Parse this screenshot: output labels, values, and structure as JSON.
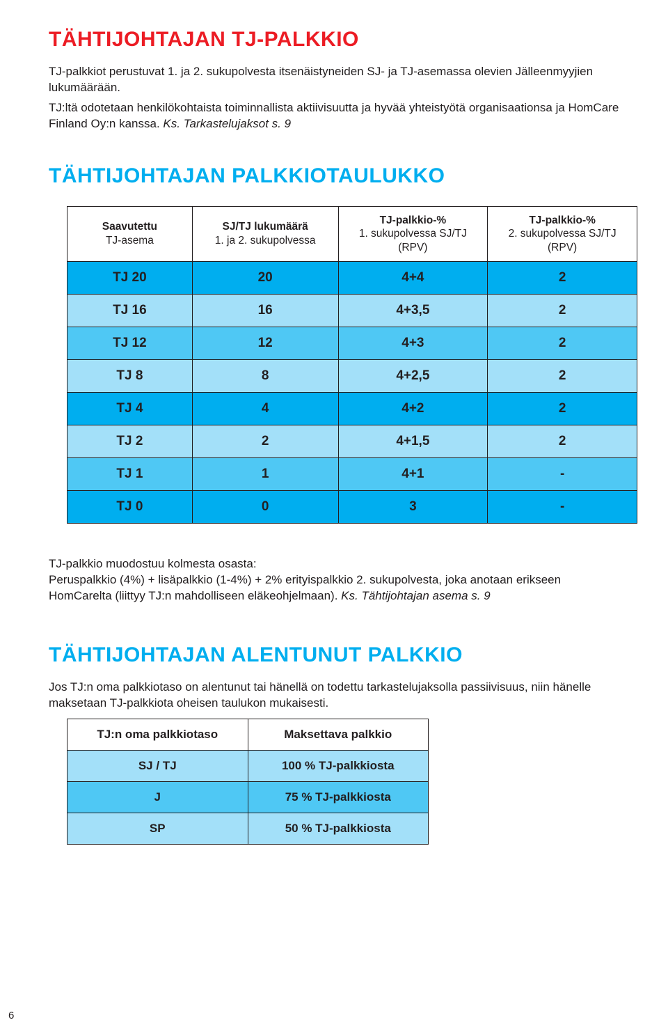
{
  "colors": {
    "heading_red": "#ec1c24",
    "heading_blue": "#00aeef",
    "text": "#231f20",
    "table_border": "#231f20",
    "row_cyan_dark": "#00aeef",
    "row_cyan_mid": "#4fc8f4",
    "row_cyan_light": "#a3e0f9",
    "white": "#ffffff"
  },
  "section1": {
    "heading": "TÄHTIJOHTAJAN TJ-PALKKIO",
    "para": "TJ-palkkiot perustuvat 1. ja 2. sukupolvesta itsenäistyneiden SJ- ja TJ-asemassa olevien Jälleenmyyjien lukumäärään.",
    "para2_plain": "TJ:ltä odotetaan henkilökohtaista toiminnallista aktiivisuutta ja hyvää yhteistyötä organisaationsa ja HomCare Finland Oy:n kanssa. ",
    "para2_italic": "Ks. Tarkastelujaksot s. 9"
  },
  "section2": {
    "heading": "TÄHTIJOHTAJAN PALKKIOTAULUKKO",
    "table": {
      "columns": [
        {
          "title": "Saavutettu",
          "sub": "TJ-asema"
        },
        {
          "title": "SJ/TJ lukumäärä",
          "sub": "1. ja 2. sukupolvessa"
        },
        {
          "title": "TJ-palkkio-%",
          "sub": "1. sukupolvessa\nSJ/TJ (RPV)"
        },
        {
          "title": "TJ-palkkio-%",
          "sub": "2. sukupolvessa\nSJ/TJ (RPV)"
        }
      ],
      "header_bg": "#ffffff",
      "rows": [
        {
          "cells": [
            "TJ 20",
            "20",
            "4+4",
            "2"
          ],
          "bg": "#00aeef"
        },
        {
          "cells": [
            "TJ 16",
            "16",
            "4+3,5",
            "2"
          ],
          "bg": "#a3e0f9"
        },
        {
          "cells": [
            "TJ 12",
            "12",
            "4+3",
            "2"
          ],
          "bg": "#4fc8f4"
        },
        {
          "cells": [
            "TJ 8",
            "8",
            "4+2,5",
            "2"
          ],
          "bg": "#a3e0f9"
        },
        {
          "cells": [
            "TJ 4",
            "4",
            "4+2",
            "2"
          ],
          "bg": "#00aeef"
        },
        {
          "cells": [
            "TJ 2",
            "2",
            "4+1,5",
            "2"
          ],
          "bg": "#a3e0f9"
        },
        {
          "cells": [
            "TJ 1",
            "1",
            "4+1",
            "-"
          ],
          "bg": "#4fc8f4"
        },
        {
          "cells": [
            "TJ 0",
            "0",
            "3",
            "-"
          ],
          "bg": "#00aeef"
        }
      ]
    },
    "footer_plain": "TJ-palkkio muodostuu kolmesta osasta:\nPeruspalkkio (4%) + lisäpalkkio (1-4%) + 2% erityispalkkio 2. sukupolvesta, joka anotaan erikseen HomCarelta (liittyy TJ:n mahdolliseen eläkeohjelmaan). ",
    "footer_italic": "Ks. Tähtijohtajan asema s. 9"
  },
  "section3": {
    "heading": "TÄHTIJOHTAJAN ALENTUNUT PALKKIO",
    "para": "Jos TJ:n oma palkkiotaso on alentunut tai hänellä on todettu tarkastelujaksolla passiivisuus, niin hänelle maksetaan TJ-palkkiota oheisen taulukon mukaisesti.",
    "table": {
      "columns": [
        "TJ:n oma palkkiotaso",
        "Maksettava palkkio"
      ],
      "header_bg": "#ffffff",
      "rows": [
        {
          "cells": [
            "SJ / TJ",
            "100 % TJ-palkkiosta"
          ],
          "bg": "#a3e0f9"
        },
        {
          "cells": [
            "J",
            "75 % TJ-palkkiosta"
          ],
          "bg": "#4fc8f4"
        },
        {
          "cells": [
            "SP",
            "50 % TJ-palkkiosta"
          ],
          "bg": "#a3e0f9"
        }
      ]
    }
  },
  "page_number": "6"
}
